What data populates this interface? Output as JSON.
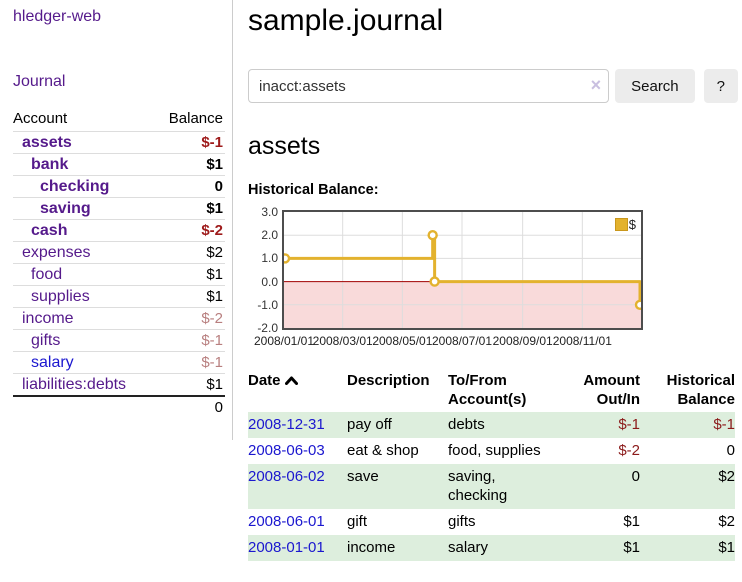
{
  "sidebar": {
    "brand": "hledger-web",
    "journal_link": "Journal",
    "table": {
      "col_account": "Account",
      "col_balance": "Balance",
      "rows": [
        {
          "name": "assets",
          "balance": "$-1"
        },
        {
          "name": "bank",
          "balance": "$1"
        },
        {
          "name": "checking",
          "balance": "0"
        },
        {
          "name": "saving",
          "balance": "$1"
        },
        {
          "name": "cash",
          "balance": "$-2"
        },
        {
          "name": "expenses",
          "balance": "$2"
        },
        {
          "name": "food",
          "balance": "$1"
        },
        {
          "name": "supplies",
          "balance": "$1"
        },
        {
          "name": "income",
          "balance": "$-2"
        },
        {
          "name": "gifts",
          "balance": "$-1"
        },
        {
          "name": "salary",
          "balance": "$-1"
        },
        {
          "name": "liabilities:debts",
          "balance": "$1"
        }
      ],
      "total": "0"
    }
  },
  "header": {
    "title": "sample.journal"
  },
  "search": {
    "value": "inacct:assets",
    "clear_icon": "×",
    "button_label": "Search",
    "help_label": "?"
  },
  "account_page": {
    "title": "assets",
    "chart_label": "Historical Balance:"
  },
  "chart_data": {
    "type": "line",
    "title": "Historical Balance:",
    "step": true,
    "x_range": [
      "2008-01-01",
      "2008-12-31"
    ],
    "series": [
      {
        "name": "$",
        "points": [
          [
            "2008-01-01",
            1
          ],
          [
            "2008-06-01",
            2
          ],
          [
            "2008-06-03",
            0
          ],
          [
            "2008-12-31",
            -1
          ]
        ]
      }
    ],
    "x_tick_labels": [
      "2008/01/01",
      "2008/03/01",
      "2008/05/01",
      "2008/07/01",
      "2008/09/01",
      "2008/11/01"
    ],
    "y_ticks": [
      "3.0",
      "2.0",
      "1.0",
      "0.0",
      "-1.0",
      "-2.0"
    ],
    "ylim": [
      -2,
      3
    ],
    "legend": "$",
    "grid": true,
    "legend_position": "top-right",
    "line_color": "#e3b22e",
    "negative_fill": "#f9dada",
    "zero_line_color": "#a00000",
    "grid_color": "#dddddd"
  },
  "register": {
    "columns": {
      "date": "Date",
      "description": "Description",
      "accounts": "To/From Account(s)",
      "amount": "Amount Out/In",
      "balance": "Historical Balance"
    },
    "rows": [
      {
        "date": "2008-12-31",
        "description": "pay off",
        "accounts": "debts",
        "amount": "$-1",
        "balance": "$-1"
      },
      {
        "date": "2008-06-03",
        "description": "eat & shop",
        "accounts": "food, supplies",
        "amount": "$-2",
        "balance": "0"
      },
      {
        "date": "2008-06-02",
        "description": "save",
        "accounts": "saving, checking",
        "amount": "0",
        "balance": "$2"
      },
      {
        "date": "2008-06-01",
        "description": "gift",
        "accounts": "gifts",
        "amount": "$1",
        "balance": "$2"
      },
      {
        "date": "2008-01-01",
        "description": "income",
        "accounts": "salary",
        "amount": "$1",
        "balance": "$1"
      }
    ]
  }
}
